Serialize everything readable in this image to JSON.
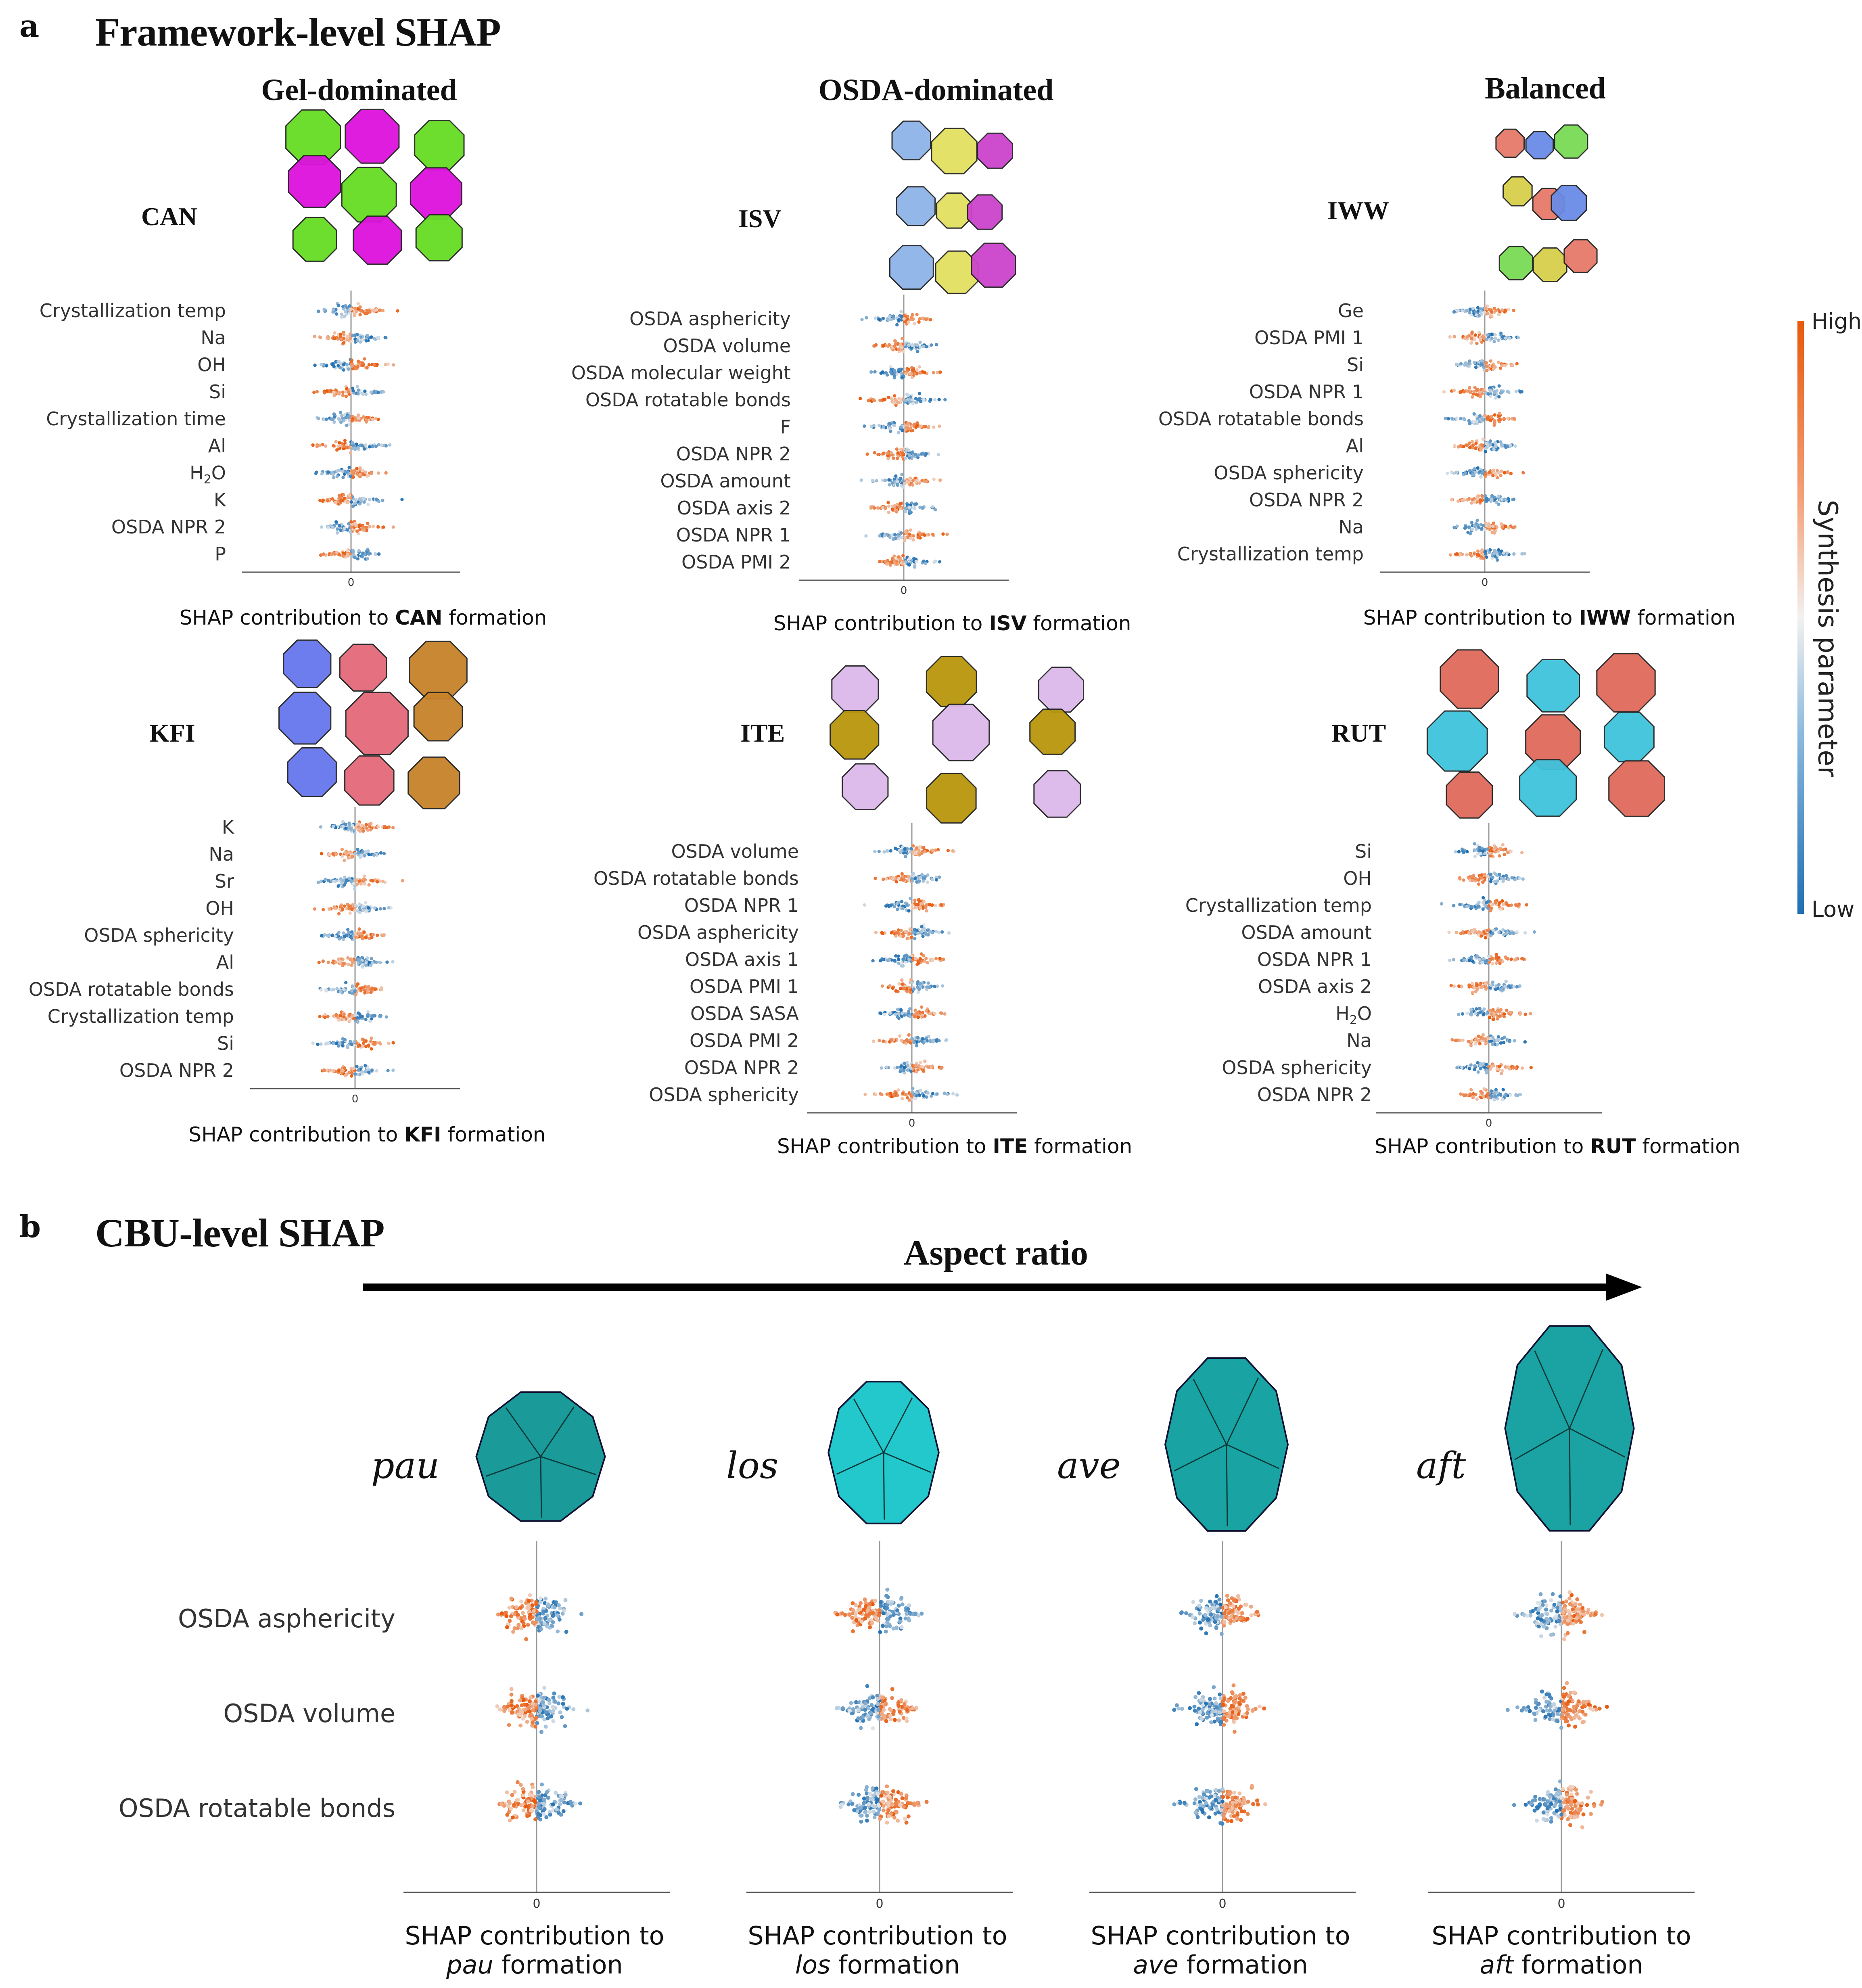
{
  "panel_a": {
    "letter": "a",
    "title": "Framework-level SHAP",
    "categories": [
      "Gel-dominated",
      "OSDA-dominated",
      "Balanced"
    ]
  },
  "panel_b": {
    "letter": "b",
    "title": "CBU-level SHAP",
    "arrow_label": "Aspect ratio"
  },
  "colorbar": {
    "high": "High",
    "low": "Low",
    "title": "Synthesis parameter",
    "color_high": "#e8590c",
    "color_mid": "#f3f1ef",
    "color_low": "#1f6fb2"
  },
  "zero_tick": "0",
  "framework_plots": [
    {
      "code": "CAN",
      "caption_prefix": "SHAP contribution to ",
      "caption_suffix": " formation",
      "structure_colors": [
        "#66dd22",
        "#dd11dd"
      ],
      "features": [
        "Crystallization temp",
        "Na",
        "OH",
        "Si",
        "Crystallization time",
        "Al",
        "H2O",
        "K",
        "OSDA NPR 2",
        "P"
      ]
    },
    {
      "code": "ISV",
      "caption_prefix": "SHAP contribution to ",
      "caption_suffix": " formation",
      "structure_colors": [
        "#8fb4e8",
        "#e3e062",
        "#cc44cc"
      ],
      "features": [
        "OSDA asphericity",
        "OSDA volume",
        "OSDA molecular weight",
        "OSDA rotatable bonds",
        "F",
        "OSDA NPR 2",
        "OSDA amount",
        "OSDA axis 2",
        "OSDA NPR 1",
        "OSDA PMI 2"
      ]
    },
    {
      "code": "IWW",
      "caption_prefix": "SHAP contribution to ",
      "caption_suffix": " formation",
      "structure_colors": [
        "#e77a6a",
        "#6a8be6",
        "#7adb54",
        "#d7cf4a"
      ],
      "features": [
        "Ge",
        "OSDA PMI 1",
        "Si",
        "OSDA NPR 1",
        "OSDA rotatable bonds",
        "Al",
        "OSDA sphericity",
        "OSDA NPR 2",
        "Na",
        "Crystallization temp"
      ]
    },
    {
      "code": "KFI",
      "caption_prefix": "SHAP contribution to ",
      "caption_suffix": " formation",
      "structure_colors": [
        "#6677ee",
        "#e46a7a",
        "#c7822a"
      ],
      "features": [
        "K",
        "Na",
        "Sr",
        "OH",
        "OSDA sphericity",
        "Al",
        "OSDA rotatable bonds",
        "Crystallization temp",
        "Si",
        "OSDA NPR 2"
      ]
    },
    {
      "code": "ITE",
      "caption_prefix": "SHAP contribution to ",
      "caption_suffix": " formation",
      "structure_colors": [
        "#dcb8ea",
        "#b8960c"
      ],
      "features": [
        "OSDA volume",
        "OSDA rotatable bonds",
        "OSDA NPR 1",
        "OSDA asphericity",
        "OSDA axis 1",
        "OSDA PMI 1",
        "OSDA SASA",
        "OSDA PMI 2",
        "OSDA NPR 2",
        "OSDA sphericity"
      ]
    },
    {
      "code": "RUT",
      "caption_prefix": "SHAP contribution to ",
      "caption_suffix": " formation",
      "structure_colors": [
        "#e06a5a",
        "#3fc3dc"
      ],
      "features": [
        "Si",
        "OH",
        "Crystallization temp",
        "OSDA amount",
        "OSDA NPR 1",
        "OSDA axis 2",
        "H2O",
        "Na",
        "OSDA sphericity",
        "OSDA NPR 2"
      ]
    }
  ],
  "cbu_features": [
    "OSDA asphericity",
    "OSDA volume",
    "OSDA rotatable bonds"
  ],
  "cbu_plots": [
    {
      "name": "pau",
      "caption_line1": "SHAP contribution to",
      "caption_suffix": " formation",
      "shape_color": "#1a9a98"
    },
    {
      "name": "los",
      "caption_line1": "SHAP contribution to",
      "caption_suffix": " formation",
      "shape_color": "#22c8cc"
    },
    {
      "name": "ave",
      "caption_line1": "SHAP contribution to",
      "caption_suffix": " formation",
      "shape_color": "#19a3a3"
    },
    {
      "name": "aft",
      "caption_line1": "SHAP contribution to",
      "caption_suffix": " formation",
      "shape_color": "#1ba3a3"
    }
  ]
}
